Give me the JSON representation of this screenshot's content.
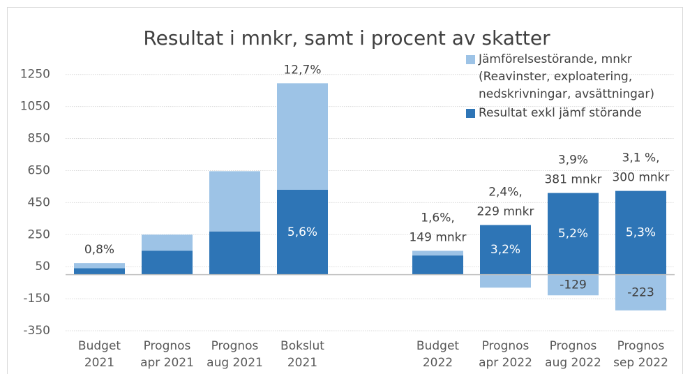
{
  "chart_data": {
    "type": "bar",
    "stacked": true,
    "title": "Resultat i mnkr, samt i procent av skatter",
    "categories": [
      "Budget 2021",
      "Prognos apr 2021",
      "Prognos aug 2021",
      "Bokslut 2021",
      null,
      "Budget 2022",
      "Prognos apr 2022",
      "Prognos aug 2022",
      "Prognos sep 2022"
    ],
    "series": [
      {
        "name": "Resultat exkl jämf störande",
        "color": "#2e75b6",
        "values": [
          40,
          150,
          270,
          530,
          null,
          120,
          310,
          510,
          523
        ]
      },
      {
        "name": "Jämförelsestörande, mnkr (Reavinster, exploatering, nedskrivningar, avsättningar)",
        "color": "#9dc3e6",
        "values": [
          32,
          100,
          376,
          665,
          null,
          29,
          -81,
          -129,
          -223
        ],
        "value_labels": [
          null,
          null,
          null,
          null,
          null,
          null,
          null,
          "-129",
          "-223"
        ]
      }
    ],
    "top_labels": [
      [
        "0,8%"
      ],
      null,
      null,
      [
        "12,7%"
      ],
      null,
      [
        "1,6%,",
        "149 mnkr"
      ],
      [
        "2,4%,",
        "229 mnkr"
      ],
      [
        "3,9%",
        "381 mnkr"
      ],
      [
        "3,1 %,",
        "300 mnkr"
      ]
    ],
    "bar_labels": [
      null,
      null,
      null,
      "5,6%",
      null,
      null,
      "3,2%",
      "5,2%",
      "5,3%"
    ],
    "ylim": [
      -350,
      1450
    ],
    "yticks": [
      -350,
      -150,
      50,
      250,
      450,
      650,
      850,
      1050,
      1250
    ],
    "grid": true,
    "legend": "top-right"
  }
}
